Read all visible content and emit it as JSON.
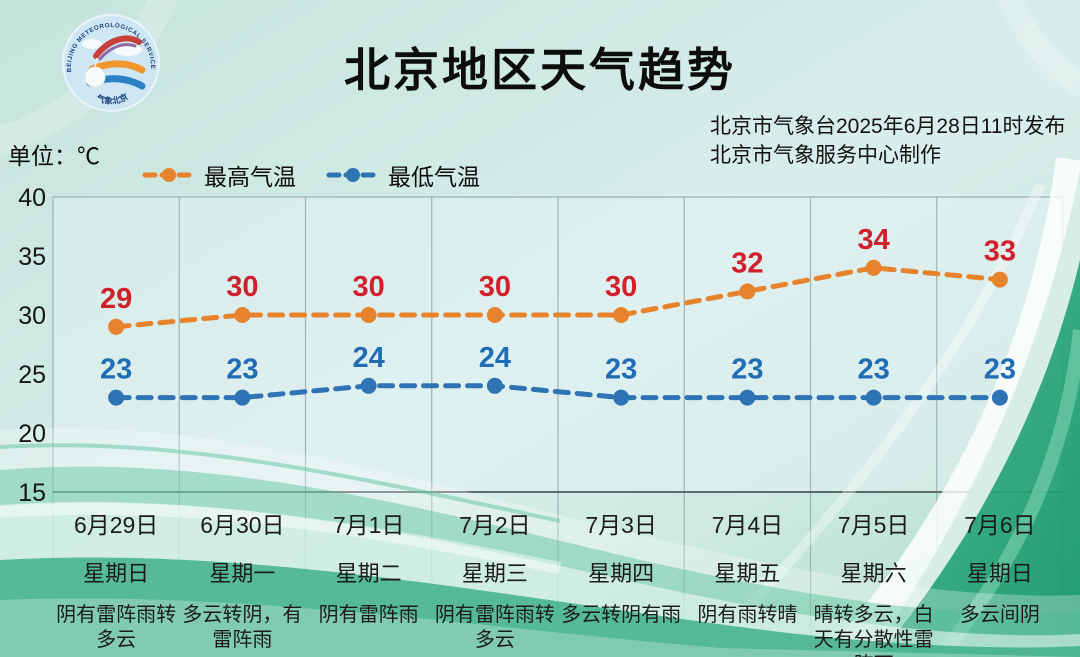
{
  "header": {
    "title": "北京地区天气趋势",
    "issued_line1": "北京市气象台2025年6月28日11时发布",
    "issued_line2": "北京市气象服务中心制作",
    "unit_label": "单位：℃",
    "logo": {
      "arc_text_top": "BEIJING METEOROLOGICAL SERVICE",
      "arc_text_bottom": "气象北京"
    }
  },
  "legend": [
    {
      "label": "最高气温",
      "color": "#e8832d"
    },
    {
      "label": "最低气温",
      "color": "#2e74b5"
    }
  ],
  "chart_data": {
    "type": "line",
    "title": "北京地区天气趋势",
    "ylabel": "单位：℃",
    "x": [
      "6月29日",
      "6月30日",
      "7月1日",
      "7月2日",
      "7月3日",
      "7月4日",
      "7月5日",
      "7月6日"
    ],
    "weekdays": [
      "星期日",
      "星期一",
      "星期二",
      "星期三",
      "星期四",
      "星期五",
      "星期六",
      "星期日"
    ],
    "weather": [
      "阴有雷阵雨转多云",
      "多云转阴，有雷阵雨",
      "阴有雷阵雨",
      "阴有雷阵雨转多云",
      "多云转阴有雨",
      "阴有雨转晴",
      "晴转多云，白天有分散性雷阵雨",
      "多云间阴"
    ],
    "series": [
      {
        "name": "最高气温",
        "values": [
          29,
          30,
          30,
          30,
          30,
          32,
          34,
          33
        ],
        "line_color": "#e8832d",
        "label_color": "#d1202b",
        "line_style": "dashed"
      },
      {
        "name": "最低气温",
        "values": [
          23,
          23,
          24,
          24,
          23,
          23,
          23,
          23
        ],
        "line_color": "#2e74b5",
        "label_color": "#1f6db5",
        "line_style": "dashed"
      }
    ],
    "ylim": [
      15,
      40
    ],
    "yticks": [
      15,
      20,
      25,
      30,
      35,
      40
    ],
    "grid": "vertical-only",
    "legend_position": "top-left"
  },
  "colors": {
    "grid": "#9db6b2",
    "axis": "#5d6d6b",
    "tick_text": "#161616"
  }
}
